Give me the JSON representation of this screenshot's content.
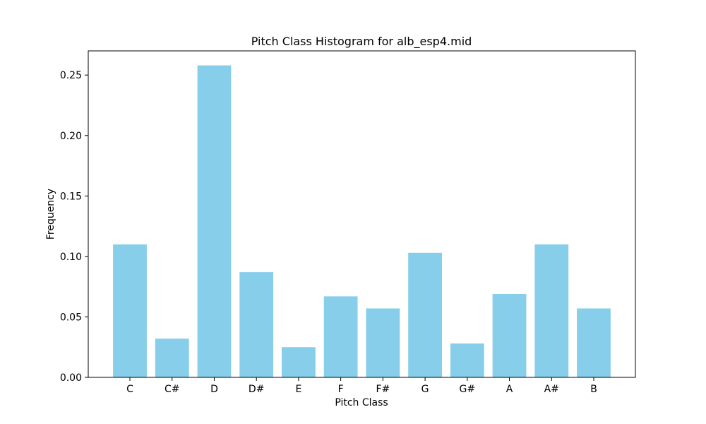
{
  "chart_data": {
    "type": "bar",
    "title": "Pitch Class Histogram for alb_esp4.mid",
    "xlabel": "Pitch Class",
    "ylabel": "Frequency",
    "categories": [
      "C",
      "C#",
      "D",
      "D#",
      "E",
      "F",
      "F#",
      "G",
      "G#",
      "A",
      "A#",
      "B"
    ],
    "values": [
      0.11,
      0.032,
      0.258,
      0.087,
      0.025,
      0.067,
      0.057,
      0.103,
      0.028,
      0.069,
      0.11,
      0.057
    ],
    "ylim": [
      0,
      0.27
    ],
    "yticks": [
      "0.00",
      "0.05",
      "0.10",
      "0.15",
      "0.20",
      "0.25"
    ],
    "ytick_values": [
      0,
      0.05,
      0.1,
      0.15,
      0.2,
      0.25
    ],
    "bar_color": "#87ceeb",
    "grid": false,
    "legend": "none"
  }
}
